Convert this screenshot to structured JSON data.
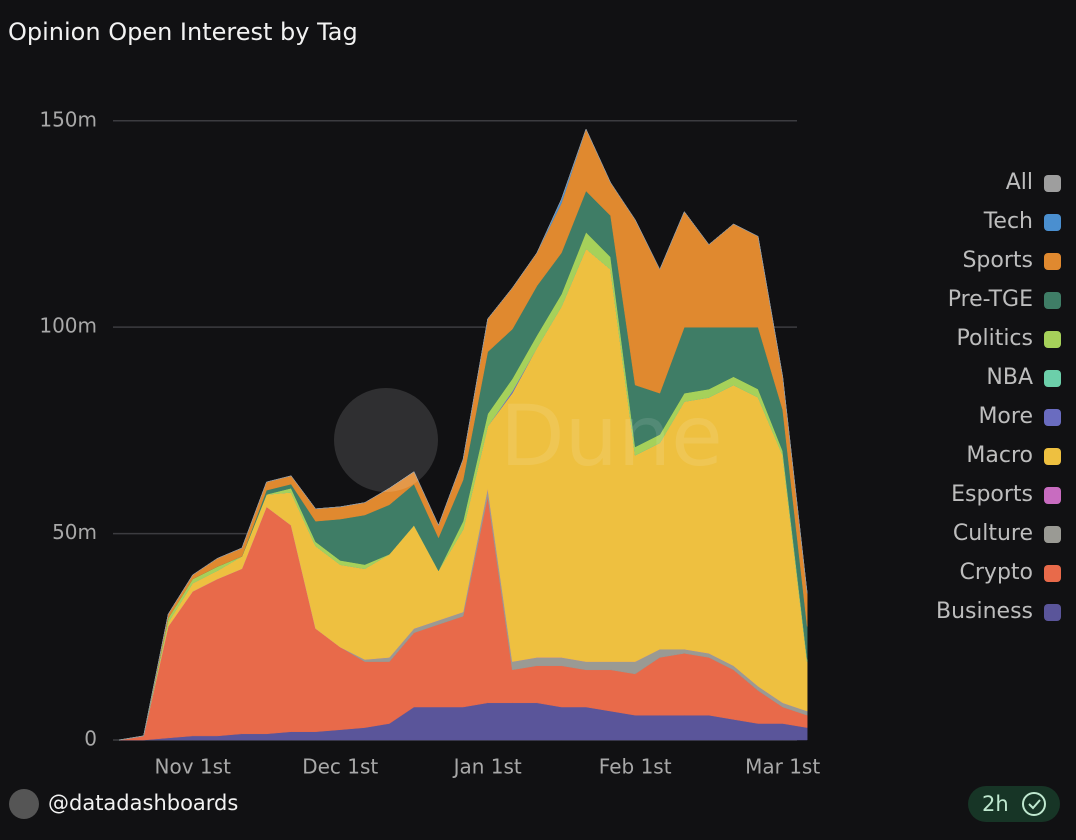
{
  "chart_data": {
    "type": "stacked-area",
    "title": "Opinion Open Interest by Tag",
    "watermark": "Dune",
    "author": "@datadashboards",
    "age": "2h",
    "categories": [
      null,
      null,
      null,
      "Nov 1st",
      null,
      null,
      null,
      null,
      null,
      "Dec 1st",
      null,
      null,
      null,
      null,
      null,
      "Jan 1st",
      null,
      null,
      null,
      null,
      null,
      "Feb 1st",
      null,
      null,
      null,
      null,
      null,
      "Mar 1st",
      null
    ],
    "ylim": [
      0,
      156
    ],
    "yticks": [
      {
        "value": 0,
        "label": "0"
      },
      {
        "value": 50,
        "label": "50m"
      },
      {
        "value": 100,
        "label": "100m"
      },
      {
        "value": 150,
        "label": "150m"
      }
    ],
    "grid": true,
    "series": [
      {
        "name": "Business",
        "color": "#5a559a",
        "values": [
          0,
          0,
          0.5,
          1,
          1,
          1.5,
          1.5,
          2,
          2,
          2.5,
          3,
          4,
          8,
          8,
          8,
          9,
          9,
          9,
          8,
          8,
          7,
          6,
          6,
          6,
          6,
          5,
          4,
          4,
          3
        ]
      },
      {
        "name": "Crypto",
        "color": "#e86a4a",
        "values": [
          0,
          1,
          27,
          35,
          38,
          40,
          55,
          50,
          25,
          20,
          16,
          15,
          18,
          20,
          22,
          50,
          8,
          9,
          10,
          9,
          10,
          10,
          14,
          15,
          14,
          12,
          8,
          4,
          3
        ]
      },
      {
        "name": "Culture",
        "color": "#9a9a94",
        "values": [
          0,
          0,
          0,
          0,
          0,
          0,
          0,
          0,
          0,
          0,
          0.5,
          1,
          1,
          1,
          1,
          2,
          2,
          2,
          2,
          2,
          2,
          3,
          2,
          1,
          1,
          1,
          1,
          1,
          1
        ]
      },
      {
        "name": "Esports",
        "color": "#c86cc0",
        "values": [
          0,
          0,
          0,
          0,
          0,
          0,
          0,
          0,
          0,
          0,
          0,
          0,
          0,
          0,
          0,
          0,
          0,
          0,
          0,
          0,
          0,
          0,
          0,
          0,
          0,
          0,
          0,
          0,
          0
        ]
      },
      {
        "name": "Macro",
        "color": "#eec040",
        "values": [
          0,
          0,
          1,
          2,
          2,
          3,
          3,
          8,
          20,
          20,
          22,
          25,
          25,
          12,
          20,
          15,
          65,
          75,
          85,
          100,
          95,
          50,
          50,
          60,
          62,
          68,
          70,
          60,
          12
        ]
      },
      {
        "name": "More",
        "color": "#6a6cc0",
        "values": [
          0,
          0,
          0,
          0,
          0,
          0,
          0,
          0,
          0,
          0,
          0,
          0,
          0,
          0,
          0,
          0,
          0.5,
          0,
          0,
          0,
          0,
          0,
          0,
          0,
          0,
          0,
          0,
          0,
          0
        ]
      },
      {
        "name": "NBA",
        "color": "#6ccfaa",
        "values": [
          0,
          0,
          0,
          0,
          0,
          0,
          0,
          0,
          0,
          0,
          0,
          0,
          0,
          0,
          0,
          0,
          0,
          0,
          0,
          0,
          0,
          0,
          0,
          0,
          0,
          0,
          0,
          0,
          0
        ]
      },
      {
        "name": "Politics",
        "color": "#a6d15a",
        "values": [
          0,
          0,
          1,
          1,
          1,
          0,
          0,
          1,
          1,
          1,
          1,
          0,
          0,
          0,
          2,
          3,
          3,
          3,
          3,
          4,
          3,
          2,
          2,
          2,
          2,
          2,
          2,
          1,
          0.5
        ]
      },
      {
        "name": "Pre-TGE",
        "color": "#3f7d66",
        "values": [
          0,
          0,
          0,
          0,
          0,
          0,
          1,
          1,
          5,
          10,
          12,
          12,
          10,
          8,
          10,
          15,
          12,
          12,
          10,
          10,
          10,
          15,
          10,
          16,
          15,
          12,
          15,
          10,
          8
        ]
      },
      {
        "name": "Sports",
        "color": "#e0892f",
        "values": [
          0,
          0,
          1,
          1,
          2,
          2,
          2,
          2,
          3,
          3,
          3,
          4,
          3,
          3,
          5,
          8,
          10,
          8,
          12,
          15,
          8,
          40,
          30,
          28,
          20,
          25,
          22,
          8,
          8
        ]
      },
      {
        "name": "Tech",
        "color": "#4a8fd0",
        "values": [
          0,
          0,
          0,
          0,
          0,
          0,
          0,
          0,
          0,
          0,
          0,
          0,
          0,
          0,
          0,
          0,
          0,
          0,
          1,
          0,
          0,
          0,
          0,
          0,
          0,
          0,
          0,
          0,
          0
        ]
      },
      {
        "name": "All",
        "color": "#9e9e9e",
        "values": [
          0,
          0,
          0,
          0,
          0,
          0,
          0,
          0,
          0,
          0,
          0,
          0,
          0,
          0,
          0,
          0,
          0,
          0,
          0,
          0,
          0,
          0,
          0,
          0,
          0,
          0,
          0,
          0,
          0
        ]
      }
    ]
  }
}
